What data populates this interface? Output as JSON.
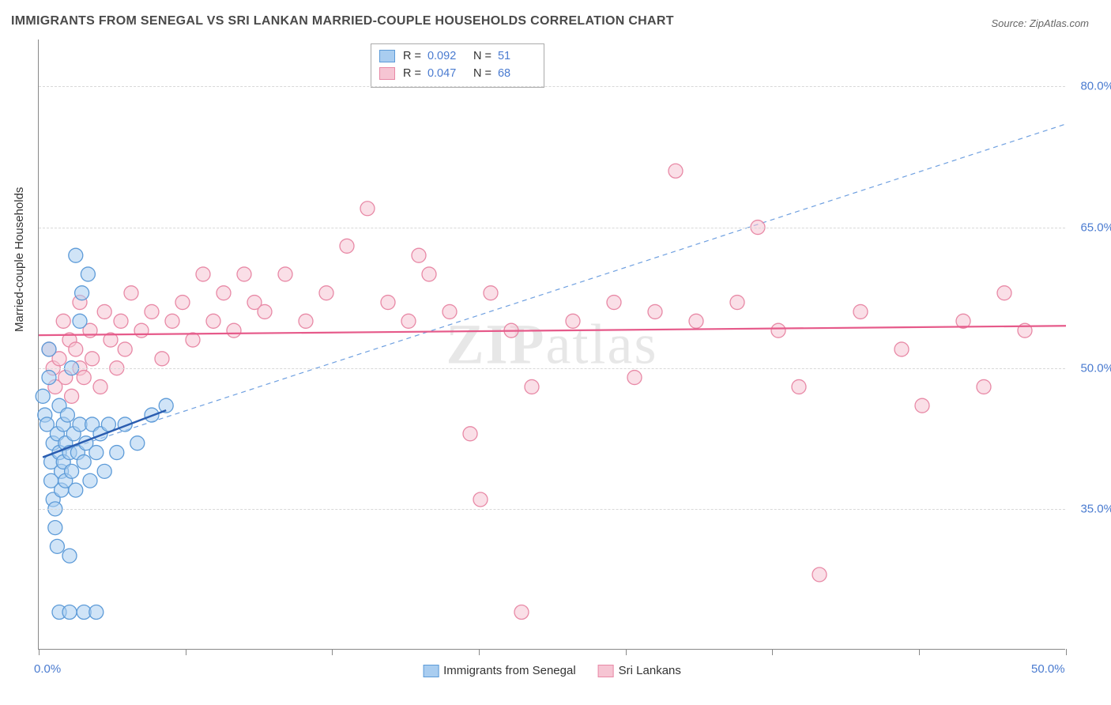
{
  "title": "IMMIGRANTS FROM SENEGAL VS SRI LANKAN MARRIED-COUPLE HOUSEHOLDS CORRELATION CHART",
  "source": "Source: ZipAtlas.com",
  "y_axis_title": "Married-couple Households",
  "watermark": {
    "part1": "ZIP",
    "part2": "atlas"
  },
  "chart": {
    "type": "scatter",
    "background_color": "#ffffff",
    "grid_color": "#d8d8d8",
    "axis_color": "#888888",
    "xlim": [
      0,
      50
    ],
    "ylim": [
      20,
      85
    ],
    "x_ticks": [
      0,
      7.14,
      14.28,
      21.42,
      28.57,
      35.71,
      42.85,
      50
    ],
    "y_gridlines": [
      35,
      50,
      65,
      80
    ],
    "y_tick_labels": [
      "35.0%",
      "50.0%",
      "65.0%",
      "80.0%"
    ],
    "x_tick_labels": {
      "first": "0.0%",
      "last": "50.0%"
    },
    "marker_radius": 9,
    "marker_opacity": 0.55,
    "series": [
      {
        "name": "Immigrants from Senegal",
        "fill_color": "#a9cdf0",
        "stroke_color": "#5d9bd8",
        "R": "0.092",
        "N": "51",
        "points": [
          [
            0.2,
            47
          ],
          [
            0.3,
            45
          ],
          [
            0.4,
            44
          ],
          [
            0.5,
            49
          ],
          [
            0.5,
            52
          ],
          [
            0.6,
            40
          ],
          [
            0.6,
            38
          ],
          [
            0.7,
            36
          ],
          [
            0.7,
            42
          ],
          [
            0.8,
            35
          ],
          [
            0.8,
            33
          ],
          [
            0.9,
            31
          ],
          [
            0.9,
            43
          ],
          [
            1.0,
            41
          ],
          [
            1.0,
            46
          ],
          [
            1.1,
            39
          ],
          [
            1.1,
            37
          ],
          [
            1.2,
            44
          ],
          [
            1.2,
            40
          ],
          [
            1.3,
            42
          ],
          [
            1.3,
            38
          ],
          [
            1.4,
            45
          ],
          [
            1.5,
            41
          ],
          [
            1.5,
            30
          ],
          [
            1.6,
            39
          ],
          [
            1.6,
            50
          ],
          [
            1.7,
            43
          ],
          [
            1.8,
            37
          ],
          [
            1.8,
            62
          ],
          [
            1.9,
            41
          ],
          [
            2.0,
            55
          ],
          [
            2.0,
            44
          ],
          [
            2.1,
            58
          ],
          [
            2.2,
            40
          ],
          [
            2.3,
            42
          ],
          [
            2.4,
            60
          ],
          [
            2.5,
            38
          ],
          [
            2.6,
            44
          ],
          [
            2.8,
            41
          ],
          [
            3.0,
            43
          ],
          [
            3.2,
            39
          ],
          [
            3.4,
            44
          ],
          [
            1.0,
            24
          ],
          [
            1.5,
            24
          ],
          [
            2.2,
            24
          ],
          [
            2.8,
            24
          ],
          [
            3.8,
            41
          ],
          [
            4.2,
            44
          ],
          [
            4.8,
            42
          ],
          [
            5.5,
            45
          ],
          [
            6.2,
            46
          ]
        ],
        "trend_solid": {
          "x1": 0.2,
          "y1": 40.5,
          "x2": 6.2,
          "y2": 45.5,
          "color": "#2a5db0",
          "width": 2.5
        },
        "trend_dashed": {
          "x1": 0.2,
          "y1": 40.5,
          "x2": 50,
          "y2": 76,
          "color": "#6fa0e0",
          "width": 1.2,
          "dash": "6,5"
        }
      },
      {
        "name": "Sri Lankans",
        "fill_color": "#f6c5d3",
        "stroke_color": "#e889a6",
        "R": "0.047",
        "N": "68",
        "points": [
          [
            0.5,
            52
          ],
          [
            0.7,
            50
          ],
          [
            0.8,
            48
          ],
          [
            1.0,
            51
          ],
          [
            1.2,
            55
          ],
          [
            1.3,
            49
          ],
          [
            1.5,
            53
          ],
          [
            1.6,
            47
          ],
          [
            1.8,
            52
          ],
          [
            2.0,
            50
          ],
          [
            2.0,
            57
          ],
          [
            2.2,
            49
          ],
          [
            2.5,
            54
          ],
          [
            2.6,
            51
          ],
          [
            3.0,
            48
          ],
          [
            3.2,
            56
          ],
          [
            3.5,
            53
          ],
          [
            3.8,
            50
          ],
          [
            4.0,
            55
          ],
          [
            4.2,
            52
          ],
          [
            4.5,
            58
          ],
          [
            5.0,
            54
          ],
          [
            5.5,
            56
          ],
          [
            6.0,
            51
          ],
          [
            6.5,
            55
          ],
          [
            7.0,
            57
          ],
          [
            7.5,
            53
          ],
          [
            8.0,
            60
          ],
          [
            8.5,
            55
          ],
          [
            9.0,
            58
          ],
          [
            9.5,
            54
          ],
          [
            10.0,
            60
          ],
          [
            10.5,
            57
          ],
          [
            11.0,
            56
          ],
          [
            12.0,
            60
          ],
          [
            13.0,
            55
          ],
          [
            14.0,
            58
          ],
          [
            15.0,
            63
          ],
          [
            16.0,
            67
          ],
          [
            17.0,
            57
          ],
          [
            18.0,
            55
          ],
          [
            18.5,
            62
          ],
          [
            19.0,
            60
          ],
          [
            20.0,
            56
          ],
          [
            21.0,
            43
          ],
          [
            21.5,
            36
          ],
          [
            22.0,
            58
          ],
          [
            23.0,
            54
          ],
          [
            23.5,
            24
          ],
          [
            24.0,
            48
          ],
          [
            26.0,
            55
          ],
          [
            28.0,
            57
          ],
          [
            29.0,
            49
          ],
          [
            30.0,
            56
          ],
          [
            31.0,
            71
          ],
          [
            32.0,
            55
          ],
          [
            34.0,
            57
          ],
          [
            35.0,
            65
          ],
          [
            36.0,
            54
          ],
          [
            37.0,
            48
          ],
          [
            38.0,
            28
          ],
          [
            40.0,
            56
          ],
          [
            42.0,
            52
          ],
          [
            43.0,
            46
          ],
          [
            45.0,
            55
          ],
          [
            46.0,
            48
          ],
          [
            47.0,
            58
          ],
          [
            48.0,
            54
          ]
        ],
        "trend_solid": {
          "x1": 0,
          "y1": 53.5,
          "x2": 50,
          "y2": 54.5,
          "color": "#e65a8a",
          "width": 2.2
        }
      }
    ]
  },
  "legend_bottom": [
    {
      "label": "Immigrants from Senegal",
      "fill": "#a9cdf0",
      "stroke": "#5d9bd8"
    },
    {
      "label": "Sri Lankans",
      "fill": "#f6c5d3",
      "stroke": "#e889a6"
    }
  ]
}
